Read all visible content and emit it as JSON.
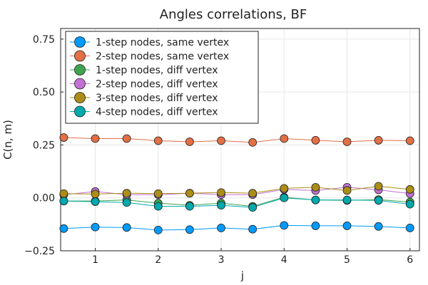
{
  "chart_data": {
    "type": "line",
    "title": "Angles correlations, BF",
    "xlabel": "j",
    "ylabel": "C(n, m)",
    "xlim": [
      0.45,
      6.15
    ],
    "ylim": [
      -0.25,
      0.8
    ],
    "xticks": [
      1,
      2,
      3,
      4,
      5,
      6
    ],
    "xtick_labels": [
      "1",
      "2",
      "3",
      "4",
      "5",
      "6"
    ],
    "yticks": [
      -0.25,
      0,
      0.25,
      0.5,
      0.75
    ],
    "ytick_labels": [
      "−0.25",
      "0.00",
      "0.25",
      "0.50",
      "0.75"
    ],
    "grid": true,
    "legend_position": "top-left",
    "x": [
      0.5,
      1.0,
      1.5,
      2.0,
      2.5,
      3.0,
      3.5,
      4.0,
      4.5,
      5.0,
      5.5,
      6.0
    ],
    "series": [
      {
        "name": "1-step nodes, same vertex",
        "color": "#009AFA",
        "values": [
          -0.145,
          -0.138,
          -0.14,
          -0.152,
          -0.15,
          -0.142,
          -0.148,
          -0.13,
          -0.132,
          -0.132,
          -0.135,
          -0.142
        ]
      },
      {
        "name": "2-step nodes, same vertex",
        "color": "#E26F46",
        "values": [
          0.285,
          0.28,
          0.28,
          0.27,
          0.265,
          0.27,
          0.262,
          0.28,
          0.272,
          0.265,
          0.272,
          0.27
        ]
      },
      {
        "name": "1-step nodes, diff vertex",
        "color": "#3EA44E",
        "values": [
          -0.015,
          -0.015,
          -0.01,
          -0.025,
          -0.035,
          -0.025,
          -0.04,
          0.003,
          -0.01,
          -0.012,
          -0.008,
          -0.02
        ]
      },
      {
        "name": "2-step nodes, diff vertex",
        "color": "#C371D2",
        "values": [
          0.015,
          0.03,
          0.015,
          0.015,
          0.022,
          0.015,
          0.015,
          0.04,
          0.035,
          0.05,
          0.038,
          0.02
        ]
      },
      {
        "name": "3-step nodes, diff vertex",
        "color": "#AC8D18",
        "values": [
          0.02,
          0.018,
          0.022,
          0.02,
          0.022,
          0.025,
          0.022,
          0.045,
          0.05,
          0.035,
          0.055,
          0.04
        ]
      },
      {
        "name": "4-step nodes, diff vertex",
        "color": "#00A9AD",
        "values": [
          -0.015,
          -0.018,
          -0.022,
          -0.04,
          -0.04,
          -0.035,
          -0.045,
          0.0,
          -0.01,
          -0.01,
          -0.012,
          -0.03
        ]
      }
    ]
  }
}
